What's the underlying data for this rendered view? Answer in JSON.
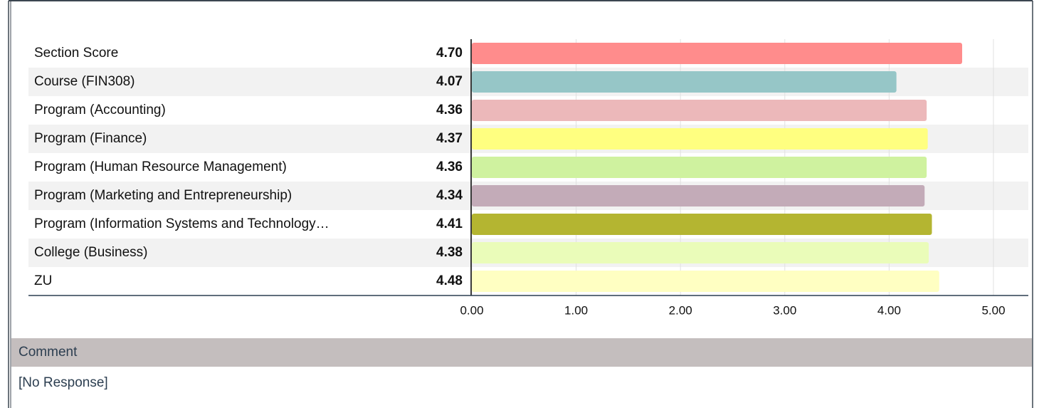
{
  "chart_data": {
    "type": "bar",
    "orientation": "horizontal",
    "categories": [
      "Section Score",
      "Course (FIN308)",
      "Program (Accounting)",
      "Program (Finance)",
      "Program (Human Resource Management)",
      "Program (Marketing and Entrepreneurship)",
      "Program (Information Systems and Technology…",
      "College (Business)",
      "ZU"
    ],
    "values": [
      4.7,
      4.07,
      4.36,
      4.37,
      4.36,
      4.34,
      4.41,
      4.38,
      4.48
    ],
    "value_labels": [
      "4.70",
      "4.07",
      "4.36",
      "4.37",
      "4.36",
      "4.34",
      "4.41",
      "4.38",
      "4.48"
    ],
    "colors": [
      "#ff8c8c",
      "#96c6c7",
      "#ecb8ba",
      "#ffff80",
      "#cff29f",
      "#c3abb8",
      "#b4b531",
      "#eafcb9",
      "#ffffc2"
    ],
    "xlim": [
      0,
      5
    ],
    "xticks": [
      {
        "value": 0,
        "label": "0.00"
      },
      {
        "value": 1,
        "label": "1.00"
      },
      {
        "value": 2,
        "label": "2.00"
      },
      {
        "value": 3,
        "label": "3.00"
      },
      {
        "value": 4,
        "label": "4.00"
      },
      {
        "value": 5,
        "label": "5.00"
      }
    ],
    "grid": true
  },
  "comment": {
    "title": "Comment",
    "text": "[No Response]"
  }
}
